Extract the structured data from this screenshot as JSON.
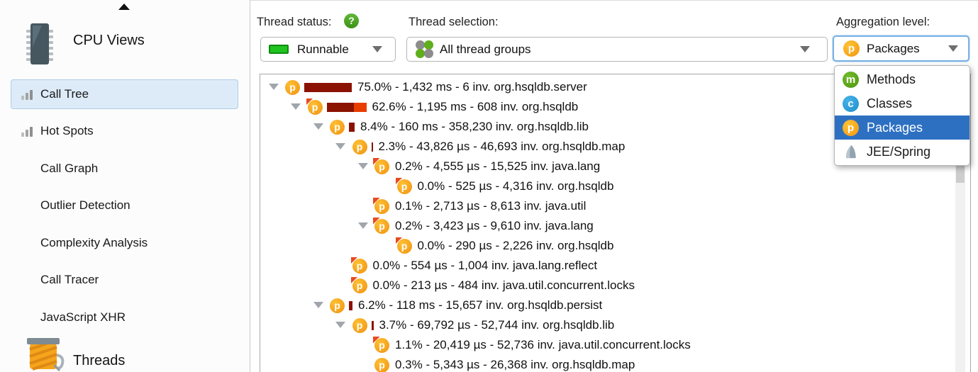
{
  "sidebar": {
    "header": {
      "label": "CPU Views",
      "icon": "cpu-chip-icon"
    },
    "items": [
      {
        "label": "Call Tree",
        "icon": "bar-chart-icon",
        "selected": true
      },
      {
        "label": "Hot Spots",
        "icon": "bar-chart-icon",
        "selected": false
      },
      {
        "label": "Call Graph",
        "icon": null,
        "selected": false
      },
      {
        "label": "Outlier Detection",
        "icon": null,
        "selected": false
      },
      {
        "label": "Complexity Analysis",
        "icon": null,
        "selected": false
      },
      {
        "label": "Call Tracer",
        "icon": null,
        "selected": false
      },
      {
        "label": "JavaScript XHR",
        "icon": null,
        "selected": false
      }
    ],
    "bottom": {
      "label": "Threads",
      "icon": "thread-spool-icon"
    }
  },
  "toolbar": {
    "thread_status": {
      "label": "Thread status:",
      "value": "Runnable",
      "swatch_color": "#1fc41f",
      "help_glyph": "?"
    },
    "thread_selection": {
      "label": "Thread selection:",
      "value": "All thread groups"
    },
    "aggregation": {
      "label": "Aggregation level:",
      "value": "Packages",
      "value_letter": "p"
    }
  },
  "aggregation_menu": {
    "items": [
      {
        "label": "Methods",
        "letter": "m",
        "color_class": "m",
        "selected": false
      },
      {
        "label": "Classes",
        "letter": "c",
        "color_class": "c",
        "selected": false
      },
      {
        "label": "Packages",
        "letter": "p",
        "color_class": "p",
        "selected": true
      },
      {
        "label": "JEE/Spring",
        "letter": null,
        "color_class": "jee",
        "selected": false
      }
    ]
  },
  "tree": {
    "bar_colors": {
      "total": "#8b1200",
      "self": "#e83c00"
    },
    "rows": [
      {
        "depth": 0,
        "arrow": true,
        "flag": false,
        "bar1": 67,
        "bar2": 0,
        "text": "75.0% - 1,432 ms - 6 inv. org.hsqldb.server"
      },
      {
        "depth": 1,
        "arrow": true,
        "flag": true,
        "bar1": 38,
        "bar2": 18,
        "text": "62.6% - 1,195 ms - 608 inv. org.hsqldb"
      },
      {
        "depth": 2,
        "arrow": true,
        "flag": false,
        "bar1": 8,
        "bar2": 0,
        "text": "8.4% - 160 ms - 358,230 inv. org.hsqldb.lib"
      },
      {
        "depth": 3,
        "arrow": true,
        "flag": false,
        "bar1": 2,
        "bar2": 0,
        "text": "2.3% - 43,826 µs - 46,693 inv. org.hsqldb.map"
      },
      {
        "depth": 4,
        "arrow": true,
        "flag": true,
        "bar1": 0,
        "bar2": 0,
        "text": "0.2% - 4,555 µs - 15,525 inv. java.lang"
      },
      {
        "depth": 5,
        "arrow": false,
        "flag": true,
        "bar1": 0,
        "bar2": 0,
        "text": "0.0% - 525 µs - 4,316 inv. org.hsqldb"
      },
      {
        "depth": 4,
        "arrow": false,
        "flag": true,
        "bar1": 0,
        "bar2": 0,
        "text": "0.1% - 2,713 µs - 8,613 inv. java.util"
      },
      {
        "depth": 4,
        "arrow": true,
        "flag": true,
        "bar1": 0,
        "bar2": 0,
        "text": "0.2% - 3,423 µs - 9,610 inv. java.lang"
      },
      {
        "depth": 5,
        "arrow": false,
        "flag": true,
        "bar1": 0,
        "bar2": 0,
        "text": "0.0% - 290 µs - 2,226 inv. org.hsqldb"
      },
      {
        "depth": 3,
        "arrow": false,
        "flag": true,
        "bar1": 0,
        "bar2": 0,
        "text": "0.0% - 554 µs - 1,004 inv. java.lang.reflect"
      },
      {
        "depth": 3,
        "arrow": false,
        "flag": true,
        "bar1": 0,
        "bar2": 0,
        "text": "0.0% - 213 µs - 484 inv. java.util.concurrent.locks"
      },
      {
        "depth": 2,
        "arrow": true,
        "flag": false,
        "bar1": 5,
        "bar2": 0,
        "text": "6.2% - 118 ms - 15,657 inv. org.hsqldb.persist"
      },
      {
        "depth": 3,
        "arrow": true,
        "flag": false,
        "bar1": 3,
        "bar2": 0,
        "text": "3.7% - 69,792 µs - 52,744 inv. org.hsqldb.lib"
      },
      {
        "depth": 4,
        "arrow": false,
        "flag": true,
        "bar1": 0,
        "bar2": 0,
        "text": "1.1% - 20,419 µs - 52,736 inv. java.util.concurrent.locks"
      },
      {
        "depth": 4,
        "arrow": false,
        "flag": false,
        "bar1": 0,
        "bar2": 0,
        "text": "0.3% - 5,343 µs - 26,368 inv. org.hsqldb.map"
      }
    ]
  }
}
